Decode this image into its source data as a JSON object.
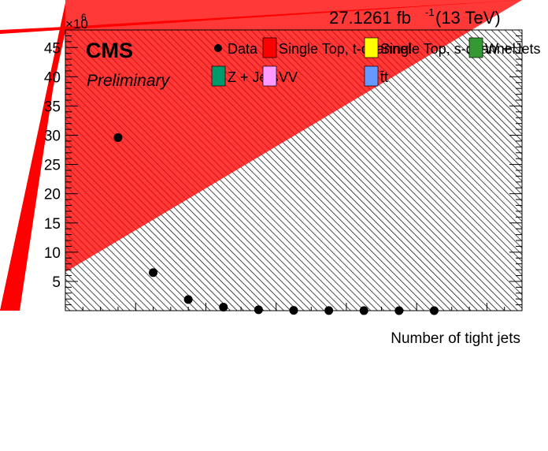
{
  "chart_data": {
    "type": "scatter",
    "title": "",
    "xlabel": "Number of tight jets",
    "ylabel": "",
    "y_multiplier": "×10",
    "y_multiplier_exp": "6",
    "x_range": [
      0,
      13
    ],
    "ylim": [
      0,
      48
    ],
    "y_ticks": [
      5,
      10,
      15,
      20,
      25,
      30,
      35,
      40,
      45
    ],
    "y_tick_labels": [
      "5",
      "10",
      "15",
      "20",
      "25",
      "30",
      "35",
      "40",
      "45"
    ],
    "grid": false,
    "legend_position": "top-right",
    "series": [
      {
        "name": "Data",
        "x": [
          1.5,
          2.5,
          3.5,
          4.5,
          5.5,
          6.5,
          7.5,
          8.5,
          9.5,
          10.5
        ],
        "y": [
          29.6,
          6.5,
          1.9,
          0.6,
          0.15,
          0.05,
          0.02,
          0.01,
          0.005,
          0.002
        ]
      }
    ],
    "legend": [
      {
        "label": "Data",
        "kind": "marker",
        "color": "#000000"
      },
      {
        "label": "Single Top, t-channel",
        "kind": "box",
        "color": "#ff0000"
      },
      {
        "label": "Single Top, s-channel",
        "kind": "box",
        "color": "#ffff00"
      },
      {
        "label": "W + Jets",
        "kind": "box",
        "color": "#339933"
      },
      {
        "label": "Z + Jets",
        "kind": "box",
        "color": "#00996b"
      },
      {
        "label": "VV",
        "kind": "box",
        "color": "#ff99ff"
      },
      {
        "label": "t̄t",
        "kind": "box",
        "color": "#6699ff"
      }
    ],
    "luminosity_label": "27.1261 fb",
    "luminosity_exp": "-1",
    "energy_label": " (13 TeV)",
    "experiment": "CMS",
    "status": "Preliminary",
    "colors": {
      "stack_fill": "#ff0000",
      "uncertainty_hatch": "#000000",
      "data_marker": "#000000"
    }
  }
}
